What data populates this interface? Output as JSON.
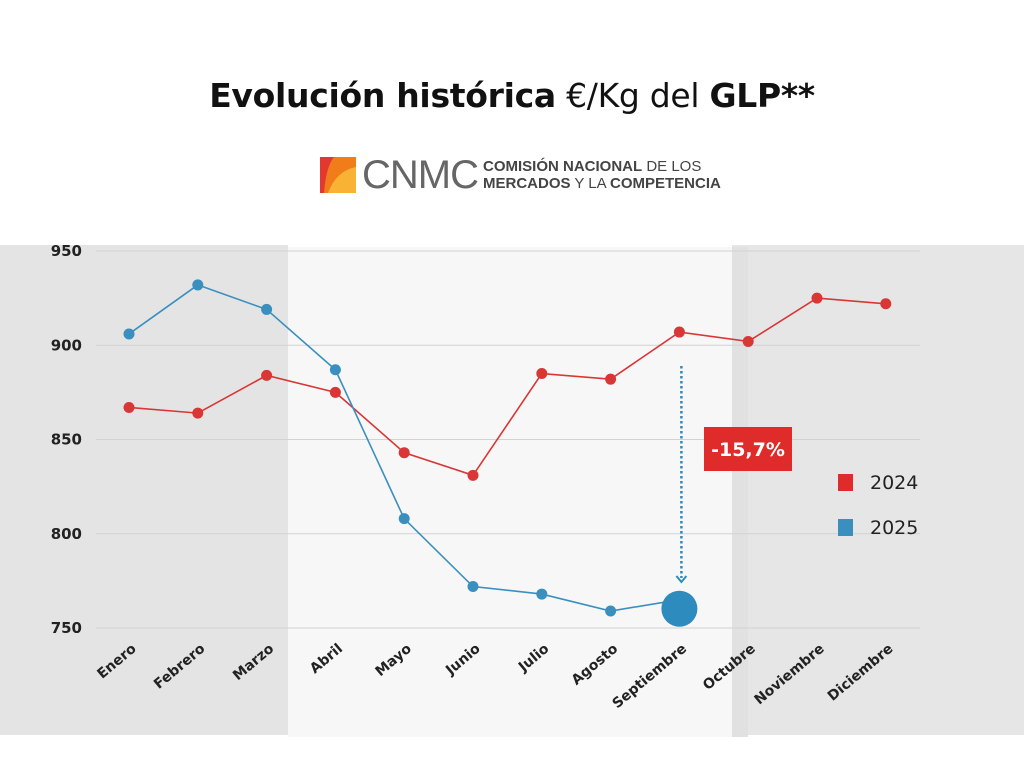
{
  "header": {
    "title_bold_1": "Evolución histórica",
    "title_light": "€/Kg del",
    "title_bold_2": "GLP**"
  },
  "logo": {
    "acronym": "CNMC",
    "line1_bold": "COMISIÓN NACIONAL",
    "line1_light": "DE LOS",
    "line2_bold_1": "MERCADOS",
    "line2_light": "Y LA",
    "line2_bold_2": "COMPETENCIA",
    "colors": [
      "#e2382f",
      "#f07d1a",
      "#f9b233"
    ]
  },
  "chart_data": {
    "type": "line",
    "title": "Evolución histórica €/Kg del GLP**",
    "xlabel": "",
    "ylabel": "",
    "categories": [
      "Enero",
      "Febrero",
      "Marzo",
      "Abril",
      "Mayo",
      "Junio",
      "Julio",
      "Agosto",
      "Septiembre",
      "Octubre",
      "Noviembre",
      "Diciembre"
    ],
    "yticks": [
      950,
      900,
      850,
      800,
      750
    ],
    "ylim": [
      750,
      950
    ],
    "grid": true,
    "legend_position": "right",
    "series": [
      {
        "name": "2024",
        "color": "#d93636",
        "values": [
          867,
          864,
          884,
          875,
          843,
          831,
          885,
          882,
          907,
          902,
          925,
          922
        ]
      },
      {
        "name": "2025",
        "color": "#3a8fbf",
        "values": [
          906,
          932,
          919,
          887,
          808,
          772,
          768,
          759,
          765,
          null,
          null,
          null
        ]
      }
    ],
    "highlight": {
      "series": "2025",
      "category": "Septiembre"
    },
    "annotation": {
      "text": "-15,7%",
      "color": "#e02b2b",
      "arrow_from_category": "Septiembre"
    },
    "shaded_period": [
      "Abril",
      "Septiembre"
    ]
  }
}
